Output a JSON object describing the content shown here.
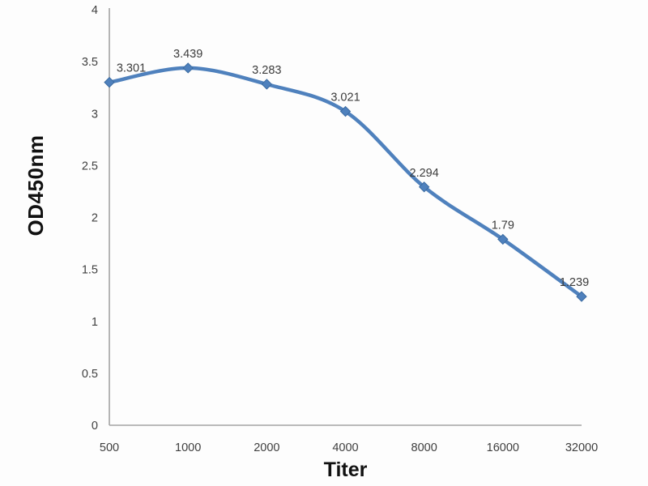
{
  "chart_data": {
    "type": "line",
    "title": "",
    "xlabel": "Titer",
    "ylabel": "OD450nm",
    "categories": [
      "500",
      "1000",
      "2000",
      "4000",
      "8000",
      "16000",
      "32000"
    ],
    "series": [
      {
        "name": "OD450nm",
        "values": [
          3.301,
          3.439,
          3.283,
          3.021,
          2.294,
          1.79,
          1.239
        ],
        "point_labels": [
          "3.301",
          "3.439",
          "3.283",
          "3.021",
          "2.294",
          "1.79",
          "1.239"
        ]
      }
    ],
    "ylim": [
      0,
      4
    ],
    "ytick_labels": [
      "0",
      "0.5",
      "1",
      "1.5",
      "2",
      "2.5",
      "3",
      "3.5",
      "4"
    ],
    "grid": "off",
    "legend": "none",
    "marker": "diamond",
    "line_color": "#4f81bd",
    "marker_edge_color": "#3a6aa0",
    "axis_color": "#a3a3a3",
    "tick_text_color": "#3f3f3f",
    "data_label_color": "#3c3c3c"
  }
}
